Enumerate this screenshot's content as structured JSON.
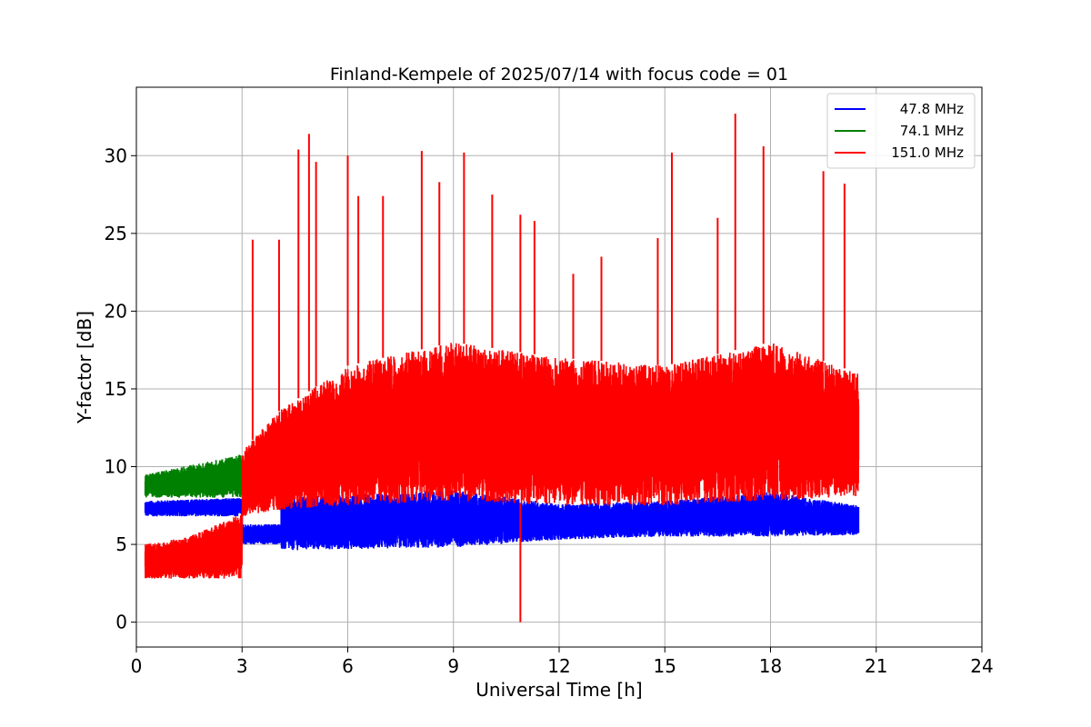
{
  "chart_data": {
    "type": "line",
    "title": "Finland-Kempele of 2025/07/14 with focus code = 01",
    "xlabel": "Universal Time [h]",
    "ylabel": "Y-factor [dB]",
    "xlim": [
      0,
      24
    ],
    "ylim": [
      -1.6,
      34.4
    ],
    "xticks": [
      0,
      3,
      6,
      9,
      12,
      15,
      18,
      21,
      24
    ],
    "yticks": [
      0,
      5,
      10,
      15,
      20,
      25,
      30
    ],
    "grid": true,
    "legend_position": "top-right",
    "series": [
      {
        "name": "47.8 MHz",
        "color": "#0000ff",
        "x": [
          0.25,
          3.0,
          3.01,
          4.1,
          4.11,
          6.0,
          9.0,
          12.0,
          15.0,
          18.0,
          20.5
        ],
        "low": [
          6.8,
          6.8,
          5.0,
          5.0,
          4.6,
          4.7,
          4.8,
          5.3,
          5.5,
          5.5,
          5.6
        ],
        "high": [
          7.8,
          8.0,
          6.3,
          6.3,
          8.0,
          8.2,
          8.5,
          7.6,
          7.8,
          8.4,
          7.5
        ]
      },
      {
        "name": "74.1 MHz",
        "color": "#008000",
        "x": [
          0.25,
          3.0
        ],
        "low": [
          8.0,
          8.0
        ],
        "high": [
          9.5,
          10.8
        ]
      },
      {
        "name": "151.0 MHz",
        "color": "#ff0000",
        "x": [
          0.25,
          1.5,
          3.0,
          3.01,
          4.0,
          6.0,
          9.0,
          12.0,
          15.0,
          18.0,
          20.5
        ],
        "low": [
          2.8,
          2.8,
          2.8,
          6.8,
          7.2,
          7.5,
          7.8,
          7.5,
          7.5,
          7.8,
          8.0
        ],
        "high": [
          5.0,
          5.5,
          7.0,
          11.0,
          13.5,
          16.5,
          18.0,
          17.0,
          16.5,
          18.0,
          16.0
        ],
        "spikes": [
          {
            "x": 3.3,
            "y": 24.6
          },
          {
            "x": 4.05,
            "y": 24.6
          },
          {
            "x": 4.6,
            "y": 30.4
          },
          {
            "x": 4.9,
            "y": 31.4
          },
          {
            "x": 5.1,
            "y": 29.6
          },
          {
            "x": 6.0,
            "y": 30.0
          },
          {
            "x": 6.3,
            "y": 27.4
          },
          {
            "x": 7.0,
            "y": 27.4
          },
          {
            "x": 8.1,
            "y": 30.3
          },
          {
            "x": 8.6,
            "y": 28.3
          },
          {
            "x": 9.3,
            "y": 30.2
          },
          {
            "x": 10.1,
            "y": 27.5
          },
          {
            "x": 10.9,
            "y": 26.2
          },
          {
            "x": 11.3,
            "y": 25.8
          },
          {
            "x": 12.4,
            "y": 22.4
          },
          {
            "x": 13.2,
            "y": 23.5
          },
          {
            "x": 14.8,
            "y": 24.7
          },
          {
            "x": 15.2,
            "y": 30.2
          },
          {
            "x": 16.5,
            "y": 26.0
          },
          {
            "x": 17.0,
            "y": 32.7
          },
          {
            "x": 17.8,
            "y": 30.6
          },
          {
            "x": 19.5,
            "y": 29.0
          },
          {
            "x": 20.1,
            "y": 28.2
          }
        ],
        "dips": [
          {
            "x": 10.9,
            "y": 0.0
          }
        ]
      }
    ]
  }
}
